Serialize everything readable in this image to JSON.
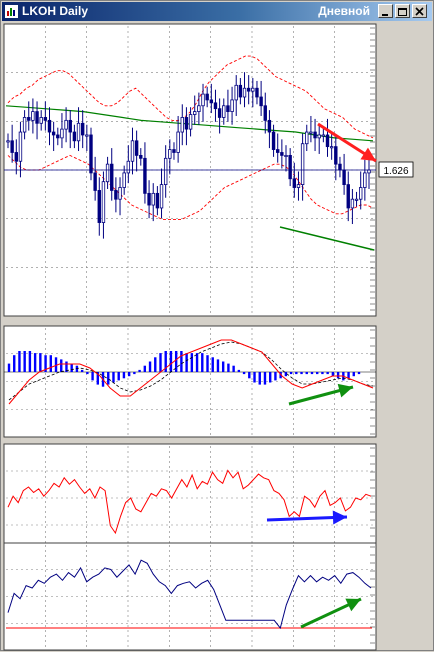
{
  "window": {
    "title": "LKOH Daily",
    "timeframe": "Дневной",
    "buttons": [
      "minimize-icon",
      "maximize-icon",
      "close-icon"
    ]
  },
  "colors": {
    "background": "#ffffff",
    "grid": "#808080",
    "candle": "#000080",
    "bollinger": "#ff0000",
    "moving_average": "#008000",
    "histogram": "#0000ff",
    "oscillator_line": "#ff0000",
    "signal_line": "#000000",
    "third_line": "#000080",
    "arrow_red": "#ff2020",
    "arrow_green": "#109010",
    "arrow_blue": "#1a1aff"
  },
  "chart_data": [
    {
      "type": "candlestick",
      "panel": "price",
      "grid": true,
      "price_label": "1.626",
      "ylim": [
        0,
        100
      ],
      "close": [
        60,
        56,
        53,
        63,
        68,
        67,
        70,
        66,
        68,
        67,
        63,
        62,
        61,
        64,
        67,
        63,
        60,
        66,
        62,
        62,
        49,
        43,
        32,
        46,
        52,
        43,
        40,
        44,
        49,
        53,
        60,
        55,
        54,
        42,
        38,
        42,
        37,
        45,
        54,
        57,
        56,
        63,
        68,
        64,
        69,
        70,
        72,
        76,
        74,
        73,
        71,
        68,
        72,
        70,
        74,
        79,
        75,
        78,
        77,
        78,
        75,
        72,
        67,
        63,
        57,
        56,
        55,
        55,
        47,
        44,
        45,
        59,
        63,
        63,
        61,
        62,
        62,
        58,
        58,
        52,
        50,
        45,
        37,
        40,
        40,
        44,
        49,
        50
      ],
      "bollinger_upper": [
        73,
        75,
        76,
        78,
        79,
        81,
        82,
        83,
        84,
        84,
        83,
        81,
        79,
        77,
        75,
        73,
        72,
        72,
        73,
        75,
        77,
        78,
        76,
        74,
        72,
        70,
        68,
        67,
        67,
        68,
        70,
        73,
        77,
        80,
        82,
        84,
        86,
        87,
        88,
        89,
        89,
        88,
        86,
        84,
        82,
        81,
        80,
        79,
        78,
        77,
        75,
        73,
        71,
        70,
        69,
        68,
        66,
        64,
        63,
        62,
        61
      ],
      "bollinger_lower": [
        55,
        53,
        51,
        50,
        50,
        50,
        51,
        52,
        53,
        54,
        55,
        54,
        53,
        52,
        50,
        48,
        46,
        44,
        42,
        40,
        38,
        37,
        36,
        35,
        34,
        33,
        33,
        33,
        33,
        34,
        35,
        36,
        38,
        40,
        42,
        44,
        45,
        46,
        47,
        48,
        49,
        50,
        51,
        52,
        52,
        51,
        49,
        46,
        43,
        40,
        38,
        37,
        36,
        35,
        35,
        36,
        37,
        38,
        38,
        37
      ],
      "moving_average": [
        72,
        71.5,
        71,
        70.5,
        70,
        69,
        68,
        67,
        66.5,
        66,
        65.5,
        65,
        64.5,
        64,
        63.5,
        63,
        62,
        61,
        60.5,
        60
      ],
      "annotations": [
        "resistance arrow (red)",
        "support trend line (green)"
      ]
    },
    {
      "type": "bar",
      "panel": "histogram oscillator",
      "grid": true,
      "values": [
        2,
        4,
        5,
        5,
        5,
        4.5,
        4.5,
        4,
        4,
        3.5,
        3,
        2.5,
        2,
        1.5,
        0.5,
        -0.5,
        -2,
        -3,
        -3.5,
        -3,
        -2.5,
        -2,
        -1.5,
        -1,
        -0.5,
        0.5,
        1.5,
        2.5,
        3.5,
        4.5,
        5,
        5,
        5,
        5,
        4.5,
        4.5,
        4.5,
        4.5,
        4,
        3.5,
        3,
        2.5,
        2,
        1.5,
        0.5,
        -0.5,
        -1.5,
        -2.5,
        -3,
        -3,
        -2.5,
        -2,
        -1.5,
        -1,
        -0.5,
        -0.5,
        -0.5,
        -0.5,
        -0.5,
        -0.5,
        -0.5,
        -0.5,
        -1,
        -1.5,
        -2,
        -1.5,
        -1,
        -0.5
      ],
      "line": [
        -8,
        -5,
        -2,
        0,
        1,
        2,
        2,
        2,
        1,
        -1,
        -4,
        -6,
        -6,
        -4,
        -2,
        0,
        2,
        4,
        5,
        6,
        7,
        8,
        8,
        7,
        6,
        5,
        2,
        -1,
        -3,
        -4,
        -3,
        -2,
        -1,
        -1,
        -2,
        -3,
        -4
      ],
      "signal": [
        -7,
        -5,
        -3,
        -2,
        -1,
        0,
        0.5,
        1,
        0.5,
        -0.5,
        -2,
        -4,
        -5,
        -4.5,
        -3.5,
        -2,
        0,
        2,
        3.5,
        5,
        6,
        7,
        7.5,
        7,
        6,
        5,
        3,
        0.5,
        -1.5,
        -3,
        -3,
        -2.5,
        -2,
        -1.5,
        -2,
        -3,
        -3.5
      ],
      "annotations": [
        "upward arrow (green)"
      ]
    },
    {
      "type": "line",
      "panel": "oscillator",
      "grid": true,
      "ylim": [
        0,
        100
      ],
      "values": [
        40,
        52,
        45,
        58,
        62,
        56,
        60,
        52,
        58,
        66,
        62,
        72,
        65,
        70,
        62,
        55,
        60,
        50,
        62,
        58,
        20,
        12,
        30,
        45,
        50,
        38,
        35,
        45,
        55,
        52,
        60,
        58,
        50,
        60,
        70,
        62,
        75,
        60,
        68,
        65,
        78,
        70,
        66,
        80,
        72,
        78,
        60,
        64,
        70,
        76,
        72,
        70,
        58,
        55,
        48,
        30,
        35,
        30,
        52,
        48,
        40,
        52,
        58,
        42,
        45,
        50,
        36,
        40,
        50,
        48,
        54,
        52
      ],
      "annotations": [
        "rightward arrow (blue)"
      ]
    },
    {
      "type": "line",
      "panel": "oscillator",
      "grid": true,
      "ylim": [
        0,
        100
      ],
      "values": [
        20,
        45,
        38,
        55,
        52,
        62,
        58,
        66,
        70,
        62,
        72,
        66,
        78,
        60,
        66,
        70,
        78,
        76,
        66,
        74,
        82,
        70,
        88,
        84,
        70,
        60,
        55,
        45,
        55,
        58,
        60,
        52,
        58,
        62,
        50,
        30,
        10,
        10,
        10,
        10,
        10,
        10,
        10,
        10,
        10,
        0,
        30,
        50,
        68,
        60,
        68,
        60,
        66,
        62,
        68,
        58,
        70,
        72,
        66,
        58,
        52
      ],
      "baseline": 0,
      "annotations": [
        "upward arrow (green)"
      ]
    }
  ]
}
